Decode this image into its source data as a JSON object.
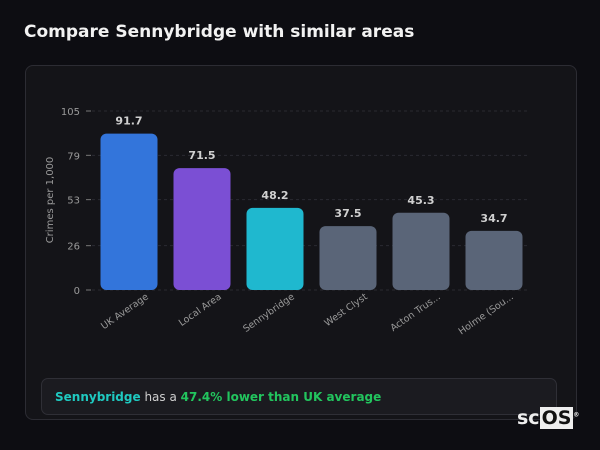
{
  "title": "Compare Sennybridge with similar areas",
  "chart_data": {
    "type": "bar",
    "ylabel": "Crimes per 1,000",
    "ylim": [
      0,
      105
    ],
    "yticks": [
      0,
      26,
      53,
      79,
      105
    ],
    "grid": true,
    "categories": [
      "UK Average",
      "Local Area",
      "Sennybridge",
      "West Clyst",
      "Acton Trus...",
      "Holme (Sou..."
    ],
    "values": [
      91.7,
      71.5,
      48.2,
      37.5,
      45.3,
      34.7
    ],
    "data_labels": [
      "91.7",
      "71.5",
      "48.2",
      "37.5",
      "45.3",
      "34.7"
    ],
    "colors": [
      "#3375db",
      "#7b4fd4",
      "#1fb8cf",
      "#5a6578",
      "#5a6578",
      "#5a6578"
    ]
  },
  "summary": {
    "area": "Sennybridge",
    "middle": " has a ",
    "highlight": "47.4% lower than UK average",
    "area_color": "#1fc9c0",
    "highlight_color": "#22c55e"
  },
  "logo": {
    "text1": "sc",
    "text2": "OS",
    "mark": "®"
  }
}
